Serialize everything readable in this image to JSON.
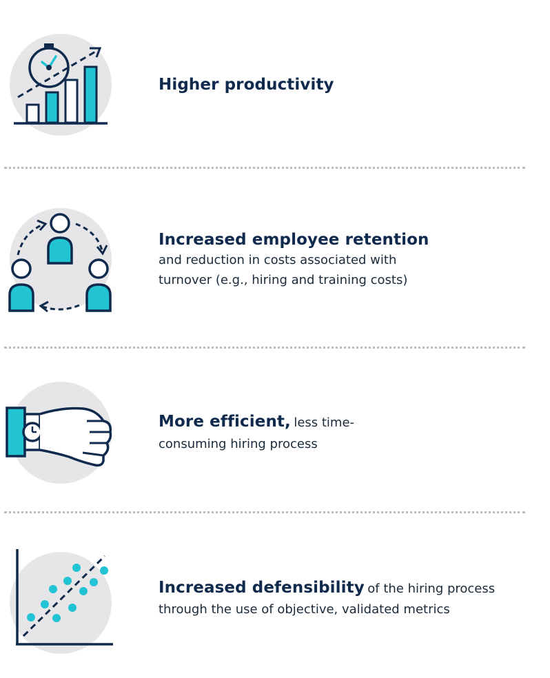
{
  "colors": {
    "navy": "#0f2a4d",
    "teal": "#22c3d3",
    "circle": "#e6e6e8",
    "divider": "#b9bcc0"
  },
  "items": [
    {
      "icon": "productivity-chart-icon",
      "heading": "Higher productivity",
      "description": ""
    },
    {
      "icon": "employee-retention-icon",
      "heading": "Increased employee retention",
      "description_line1": "and reduction in costs associated with",
      "description_line2": "turnover (e.g., hiring and training costs)"
    },
    {
      "icon": "wristwatch-hand-icon",
      "heading": "More efficient,",
      "inline_description": "less time-",
      "description_line2": "consuming hiring process"
    },
    {
      "icon": "scatter-plot-icon",
      "heading": "Increased defensibility",
      "inline_description": "of the hiring process",
      "description_line2": "through the use of objective, validated metrics"
    }
  ]
}
